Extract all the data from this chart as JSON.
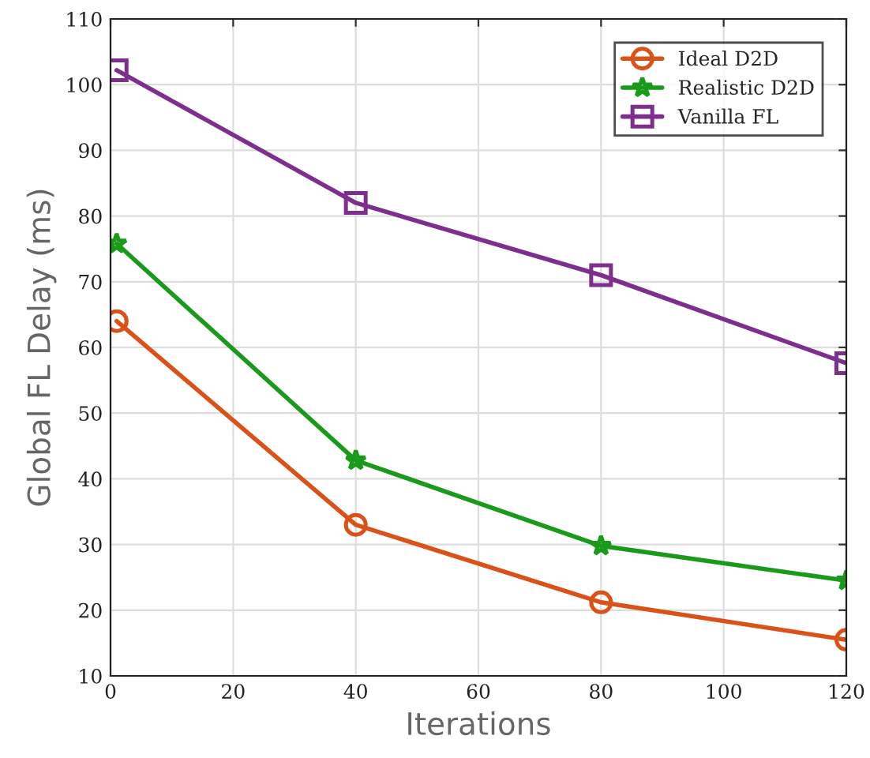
{
  "chart_data": {
    "type": "line",
    "xlabel": "Iterations",
    "ylabel": "Global FL Delay (ms)",
    "xlim": [
      0,
      120
    ],
    "xticks": [
      0,
      20,
      40,
      60,
      80,
      100,
      120
    ],
    "ylim": [
      10,
      110
    ],
    "yticks": [
      10,
      20,
      30,
      40,
      50,
      60,
      70,
      80,
      90,
      100,
      110
    ],
    "grid": true,
    "legend": "top right",
    "series": [
      {
        "name": "Ideal D2D",
        "color": "#d95319",
        "marker": "circle",
        "x": [
          1,
          40,
          80,
          120
        ],
        "values": [
          64,
          33,
          21.2,
          15.5
        ]
      },
      {
        "name": "Realistic D2D",
        "color": "#1a9a1a",
        "marker": "star",
        "x": [
          1,
          40,
          80,
          120
        ],
        "values": [
          75.8,
          42.8,
          29.8,
          24.5
        ]
      },
      {
        "name": "Vanilla FL",
        "color": "#7e2f8e",
        "marker": "square",
        "x": [
          1,
          40,
          80,
          120
        ],
        "values": [
          102.2,
          82,
          71,
          57.6
        ]
      }
    ]
  }
}
